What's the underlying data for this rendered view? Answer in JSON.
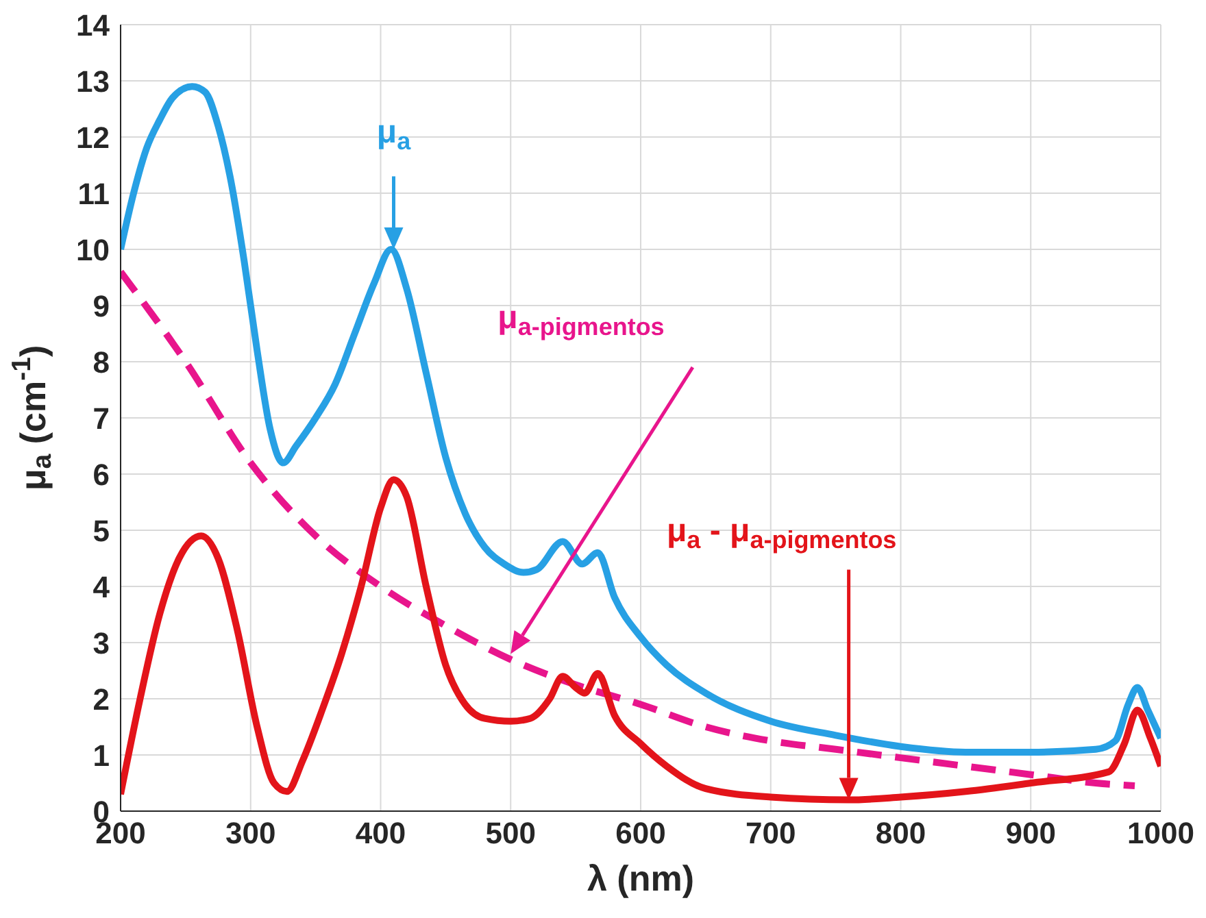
{
  "chart_data": {
    "type": "line",
    "xlabel": "λ (nm)",
    "ylabel": "μ$_{a}$ (cm$^{-1}$)",
    "xlim": [
      200,
      1000
    ],
    "xticks": [
      200,
      300,
      400,
      500,
      600,
      700,
      800,
      900,
      1000
    ],
    "ylim": [
      0,
      14
    ],
    "yticks": [
      0,
      1,
      2,
      3,
      4,
      5,
      6,
      7,
      8,
      9,
      10,
      11,
      12,
      13,
      14
    ],
    "grid": true,
    "marker": "none",
    "series": [
      {
        "color": "#27a0e4",
        "line_style": "solid",
        "x": [
          200,
          210,
          220,
          230,
          240,
          255,
          265,
          275,
          285,
          295,
          305,
          315,
          325,
          335,
          350,
          365,
          380,
          395,
          408,
          420,
          435,
          450,
          465,
          480,
          495,
          510,
          520,
          540,
          555,
          567,
          580,
          600,
          620,
          650,
          700,
          750,
          800,
          850,
          900,
          950,
          965,
          975,
          982,
          990,
          1000
        ],
        "values": [
          10,
          11,
          11.8,
          12.3,
          12.7,
          12.9,
          12.8,
          12.2,
          11.2,
          9.8,
          8.2,
          6.8,
          6.2,
          6.5,
          7,
          7.6,
          8.5,
          9.4,
          10,
          9.3,
          7.8,
          6.3,
          5.3,
          4.7,
          4.4,
          4.25,
          4.3,
          4.8,
          4.4,
          4.6,
          3.8,
          3.1,
          2.6,
          2.1,
          1.6,
          1.35,
          1.15,
          1.05,
          1.05,
          1.1,
          1.25,
          1.9,
          2.2,
          1.8,
          1.3
        ]
      },
      {
        "color": "#e8158c",
        "line_style": "dashed",
        "x": [
          200,
          250,
          300,
          350,
          400,
          450,
          500,
          550,
          600,
          650,
          700,
          750,
          800,
          850,
          900,
          950,
          980
        ],
        "values": [
          9.6,
          8,
          6.2,
          4.9,
          4,
          3.3,
          2.7,
          2.25,
          1.9,
          1.5,
          1.25,
          1.1,
          0.95,
          0.8,
          0.65,
          0.5,
          0.45
        ]
      },
      {
        "color": "#e3141a",
        "line_style": "solid",
        "x": [
          200,
          215,
          230,
          245,
          262,
          275,
          290,
          305,
          318,
          328,
          340,
          355,
          370,
          385,
          400,
          410,
          420,
          435,
          450,
          465,
          480,
          500,
          515,
          530,
          540,
          550,
          557,
          567,
          580,
          600,
          620,
          650,
          700,
          760,
          800,
          850,
          900,
          960,
          972,
          982,
          992,
          1000
        ],
        "values": [
          0.3,
          2,
          3.5,
          4.5,
          4.9,
          4.5,
          3.2,
          1.5,
          0.5,
          0.35,
          0.9,
          1.8,
          2.8,
          4,
          5.4,
          5.9,
          5.6,
          4,
          2.6,
          1.9,
          1.65,
          1.6,
          1.65,
          2,
          2.4,
          2.2,
          2.1,
          2.45,
          1.7,
          1.2,
          0.8,
          0.4,
          0.25,
          0.2,
          0.25,
          0.35,
          0.5,
          0.7,
          1.2,
          1.8,
          1.3,
          0.8
        ]
      }
    ],
    "annotations": [
      "μ$_{a}$",
      "μ$_{a-pigmentos}$",
      "μ$_{a}$ - μ$_{a-pigmentos}$"
    ]
  }
}
